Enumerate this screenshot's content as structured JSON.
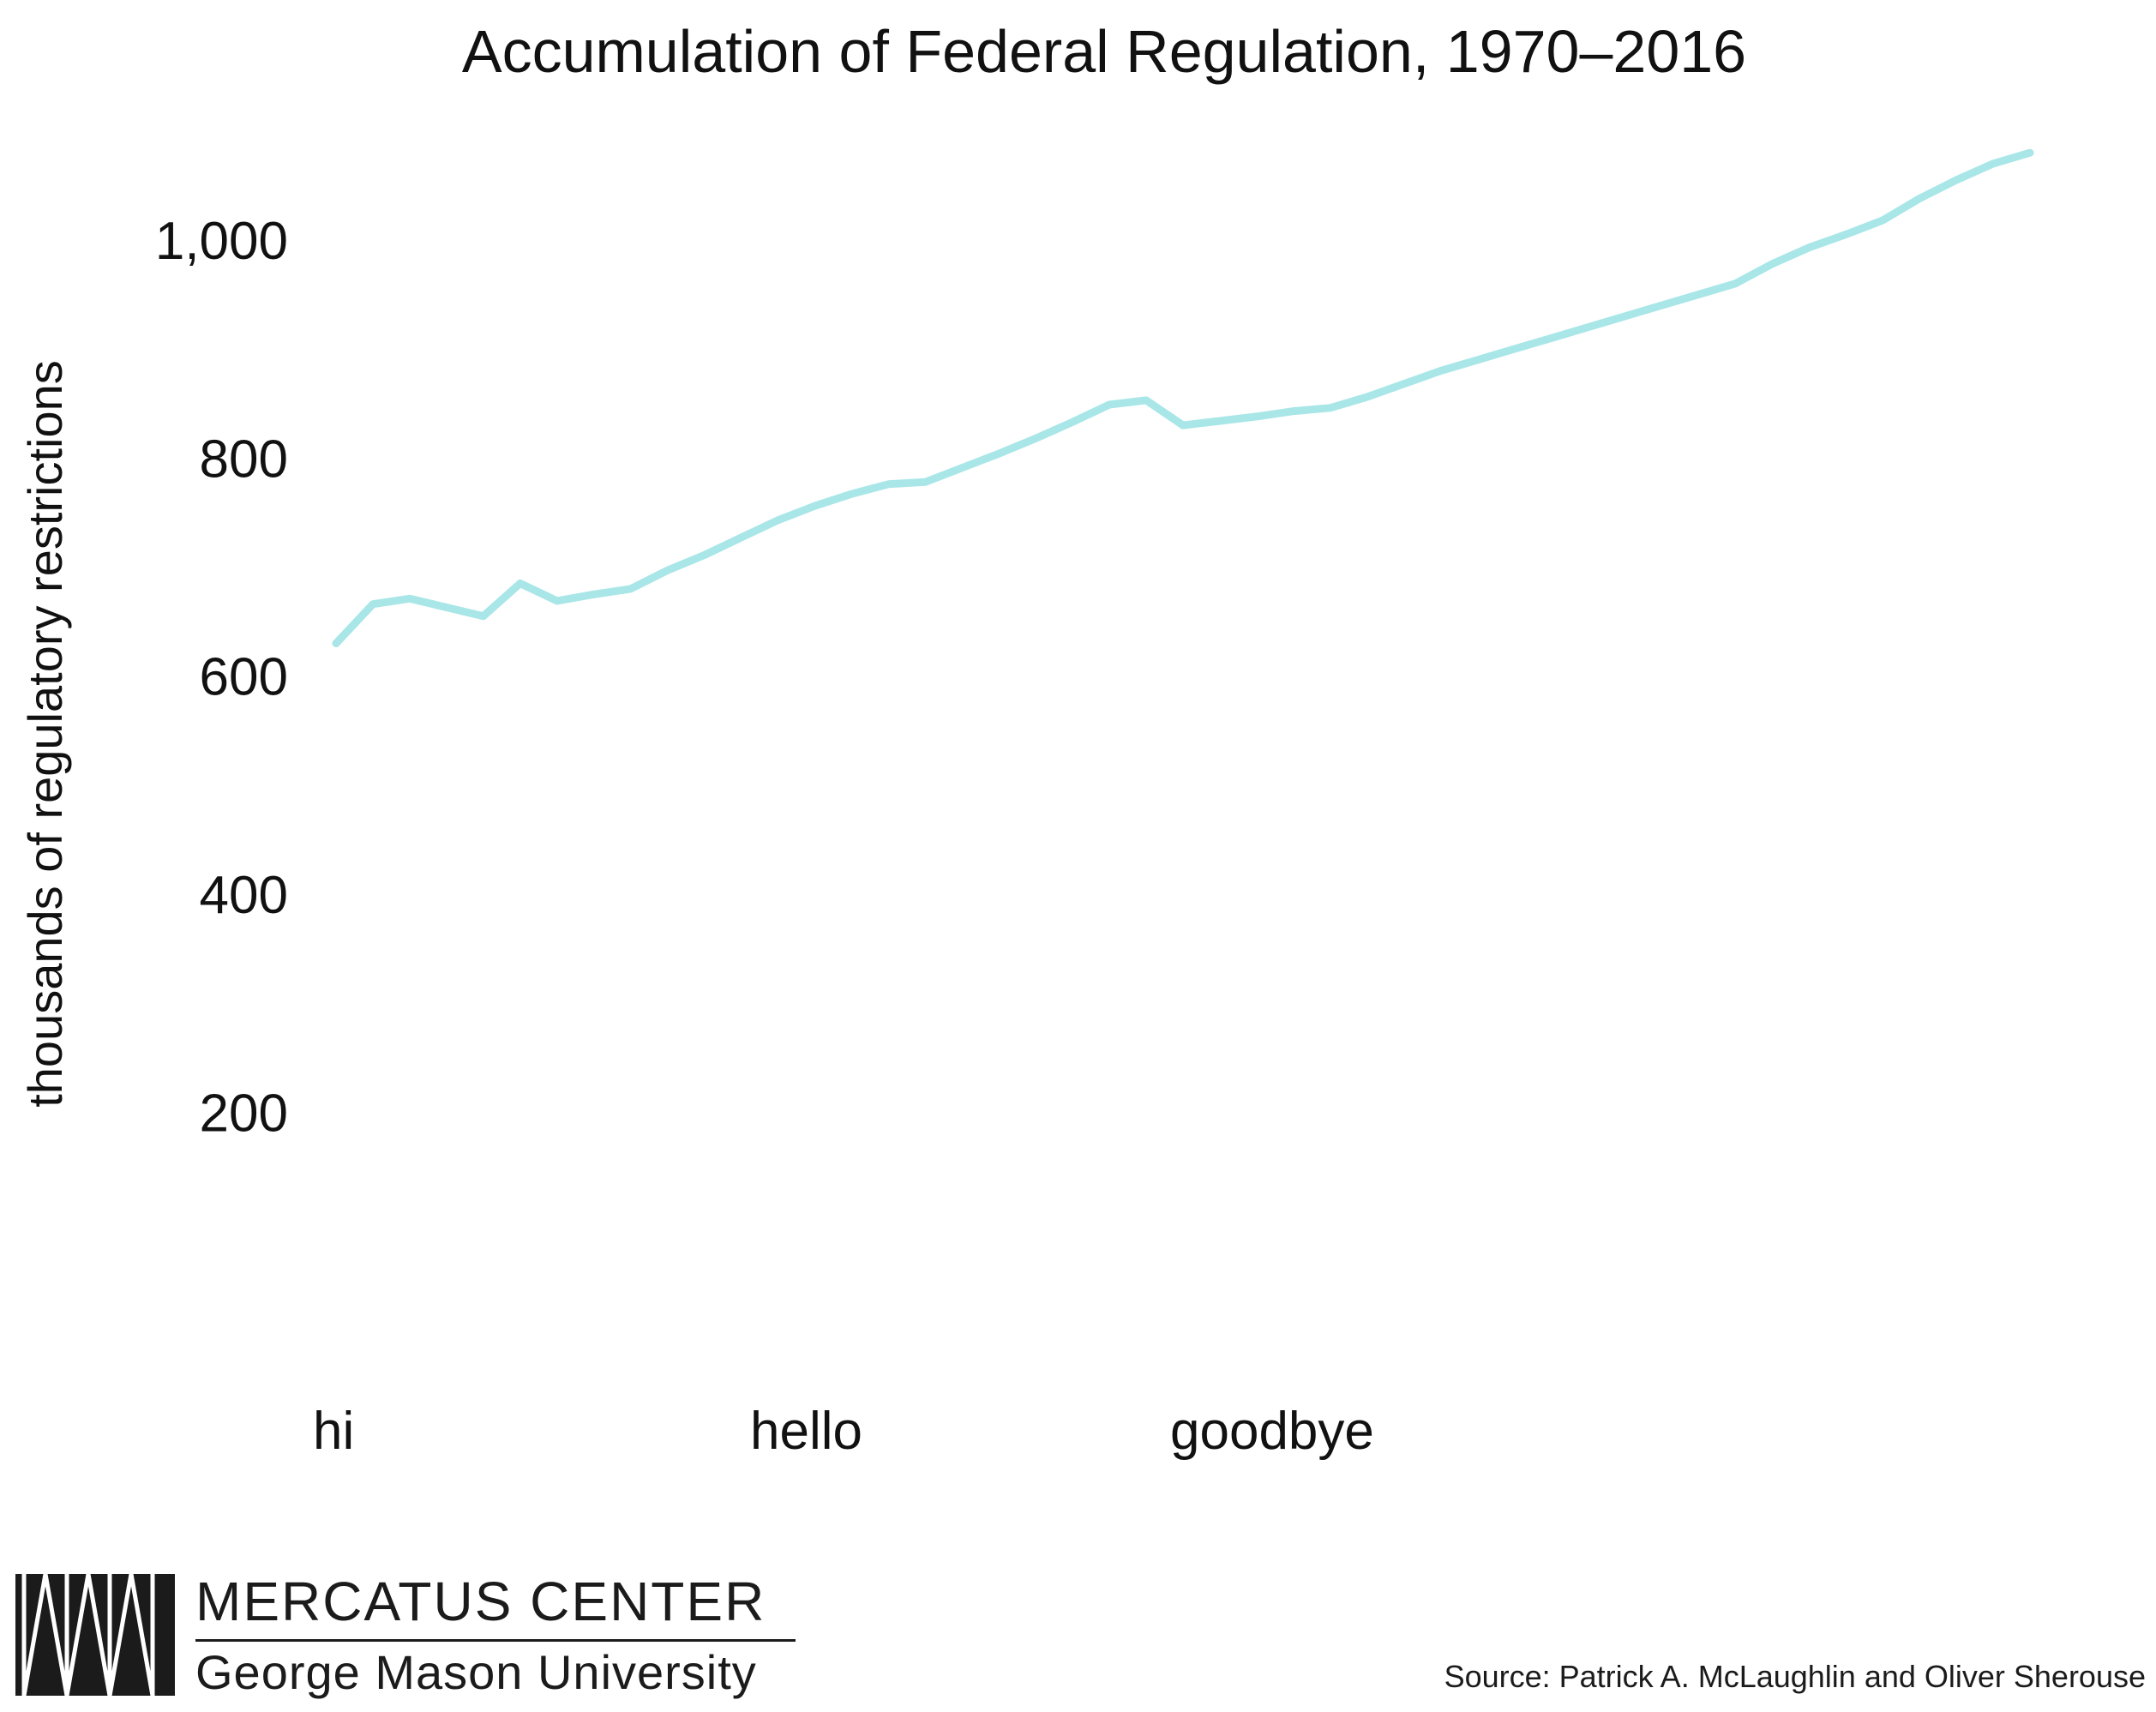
{
  "chart_data": {
    "type": "line",
    "title": "Accumulation of Federal Regulation, 1970–2016",
    "xlabel": "",
    "ylabel": "thousands of regulatory restrictions",
    "x_tick_labels": [
      "hi",
      "hello",
      "goodbye"
    ],
    "y_ticks": [
      200,
      400,
      600,
      800,
      1000
    ],
    "y_tick_labels": [
      "200",
      "400",
      "600",
      "800",
      "1,000"
    ],
    "ylim": [
      80,
      1110
    ],
    "grid": false,
    "legend": "none",
    "line_color": "#a9e6e8",
    "x": [
      1970,
      1971,
      1972,
      1973,
      1974,
      1975,
      1976,
      1977,
      1978,
      1979,
      1980,
      1981,
      1982,
      1983,
      1984,
      1985,
      1986,
      1987,
      1988,
      1989,
      1990,
      1991,
      1992,
      1993,
      1994,
      1995,
      1996,
      1997,
      1998,
      1999,
      2000,
      2001,
      2002,
      2003,
      2004,
      2005,
      2006,
      2007,
      2008,
      2009,
      2010,
      2011,
      2012,
      2013,
      2014,
      2015,
      2016
    ],
    "values": [
      630,
      666,
      671,
      663,
      655,
      685,
      669,
      675,
      680,
      697,
      711,
      727,
      743,
      756,
      767,
      776,
      778,
      791,
      804,
      818,
      833,
      849,
      853,
      830,
      834,
      838,
      843,
      846,
      856,
      868,
      880,
      890,
      900,
      910,
      920,
      930,
      940,
      950,
      960,
      978,
      993,
      1005,
      1018,
      1038,
      1055,
      1070,
      1080
    ]
  },
  "logo": {
    "name": "MERCATUS CENTER",
    "subtitle": "George Mason University"
  },
  "source_note": "Source: Patrick A. McLaughlin and Oliver Sherouse"
}
